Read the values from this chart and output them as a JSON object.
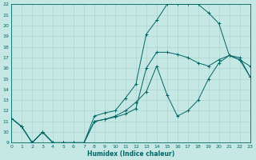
{
  "xlabel": "Humidex (Indice chaleur)",
  "xlim": [
    0,
    23
  ],
  "ylim": [
    9,
    22
  ],
  "xticks": [
    0,
    1,
    2,
    3,
    4,
    5,
    6,
    7,
    8,
    9,
    10,
    11,
    12,
    13,
    14,
    15,
    16,
    17,
    18,
    19,
    20,
    21,
    22,
    23
  ],
  "yticks": [
    9,
    10,
    11,
    12,
    13,
    14,
    15,
    16,
    17,
    18,
    19,
    20,
    21,
    22
  ],
  "bg_color": "#c5e8e5",
  "line_color": "#006666",
  "grid_color": "#aed4d0",
  "line1_x": [
    0,
    1,
    2,
    3,
    4,
    5,
    6,
    7,
    8,
    9,
    10,
    11,
    12,
    13,
    14,
    15,
    16,
    17,
    18,
    19,
    20,
    21,
    22,
    23
  ],
  "line1_y": [
    11.3,
    10.5,
    9.0,
    10.0,
    9.0,
    9.0,
    9.0,
    9.0,
    11.0,
    11.2,
    11.4,
    11.7,
    12.2,
    16.0,
    17.5,
    17.5,
    17.3,
    17.0,
    16.5,
    16.2,
    16.8,
    17.2,
    16.8,
    16.2
  ],
  "line2_x": [
    0,
    1,
    2,
    3,
    4,
    5,
    6,
    7,
    8,
    9,
    10,
    11,
    12,
    13,
    14,
    15,
    16,
    17,
    18,
    19,
    20,
    21,
    22,
    23
  ],
  "line2_y": [
    11.3,
    10.5,
    9.0,
    10.0,
    9.0,
    9.0,
    9.0,
    9.0,
    11.5,
    11.8,
    12.0,
    13.2,
    14.5,
    19.2,
    20.5,
    22.0,
    22.0,
    22.0,
    22.0,
    21.2,
    20.2,
    17.2,
    16.8,
    15.2
  ],
  "line3_x": [
    0,
    1,
    2,
    3,
    4,
    5,
    6,
    7,
    8,
    9,
    10,
    11,
    12,
    13,
    14,
    15,
    16,
    17,
    18,
    19,
    20,
    21,
    22,
    23
  ],
  "line3_y": [
    11.3,
    10.5,
    9.0,
    10.0,
    9.0,
    9.0,
    9.0,
    9.0,
    11.0,
    11.2,
    11.5,
    12.0,
    12.8,
    13.8,
    16.2,
    13.5,
    11.5,
    12.0,
    13.0,
    15.0,
    16.5,
    17.2,
    17.0,
    15.2
  ]
}
